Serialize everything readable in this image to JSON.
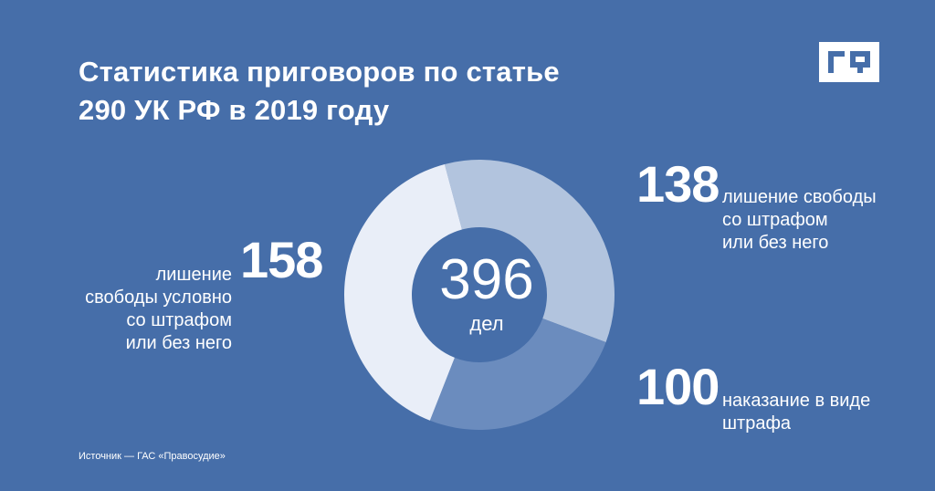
{
  "title_lines": [
    "Статистика приговоров по статье",
    "290 УК РФ в 2019 году"
  ],
  "logo_text": "ГФ",
  "center": {
    "value": "396",
    "unit": "дел"
  },
  "source": "Источник — ГАС «Правосудие»",
  "colors": {
    "background": "#466ea9",
    "slice_prison": "#b2c4de",
    "slice_fine": "#6b8cbe",
    "slice_suspended": "#e9eef8"
  },
  "chart_data": {
    "type": "pie",
    "total": 396,
    "slices": [
      {
        "value": 138,
        "label": "138",
        "desc": [
          "лишение свободы",
          "со штрафом",
          "или без него"
        ],
        "color": "#b2c4de"
      },
      {
        "value": 100,
        "label": "100",
        "desc": [
          "наказание в виде",
          "штрафа"
        ],
        "color": "#6b8cbe"
      },
      {
        "value": 158,
        "label": "158",
        "desc": [
          "лишение",
          "свободы условно",
          "со штрафом",
          "или без него"
        ],
        "color": "#e9eef8"
      }
    ]
  }
}
